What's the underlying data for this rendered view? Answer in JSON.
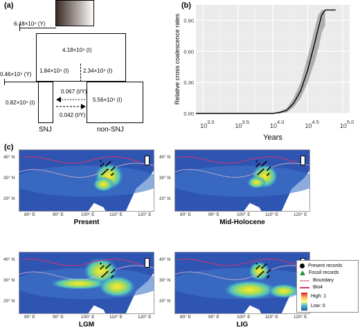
{
  "panels": {
    "a": "(a)",
    "b": "(b)",
    "c": "(c)"
  },
  "panel_a": {
    "ancestral_top": "6.48×10⁴ (Y)",
    "ancestral_box": "4.18×10⁴ (I)",
    "left_founder": "1.84×10⁴ (I)",
    "right_founder": "2.34×10⁴ (I)",
    "split_time": "0.46×10⁴ (Y)",
    "snj_size": "0.82×10⁴ (I)",
    "nonsnj_size": "5.56×10⁴ (I)",
    "migration_top": "0.067 (I/Y)",
    "migration_bottom": "0.042 (I/Y)",
    "snj_label": "SNJ",
    "nonsnj_label": "non-SNJ"
  },
  "chart_data": {
    "type": "line",
    "xlabel": "Years",
    "ylabel": "Relative cross coalescence rates",
    "x_scale": "log10",
    "x_tick_labels": [
      "10^3.0",
      "10^3.5",
      "10^4.0",
      "10^4.5",
      "10^5.0"
    ],
    "y_tick_labels": [
      "0.00",
      "0.30",
      "0.60",
      "0.90"
    ],
    "xlim": [
      2.9,
      5.1
    ],
    "ylim": [
      0,
      1.05
    ],
    "grid": true,
    "series": [
      {
        "values": [
          [
            2.9,
            0.0
          ],
          [
            3.2,
            0.0
          ],
          [
            3.5,
            0.0
          ],
          [
            3.8,
            0.0
          ],
          [
            4.0,
            0.0
          ],
          [
            4.1,
            0.01
          ],
          [
            4.2,
            0.03
          ],
          [
            4.3,
            0.1
          ],
          [
            4.4,
            0.22
          ],
          [
            4.5,
            0.42
          ],
          [
            4.55,
            0.55
          ],
          [
            4.6,
            0.68
          ],
          [
            4.65,
            0.82
          ],
          [
            4.7,
            0.95
          ],
          [
            4.75,
            1.0
          ],
          [
            4.9,
            1.0
          ]
        ]
      }
    ],
    "band": [
      [
        4.0,
        0.0,
        0.0
      ],
      [
        4.1,
        0.0,
        0.02
      ],
      [
        4.2,
        0.01,
        0.05
      ],
      [
        4.3,
        0.06,
        0.15
      ],
      [
        4.4,
        0.15,
        0.3
      ],
      [
        4.5,
        0.3,
        0.55
      ],
      [
        4.55,
        0.4,
        0.68
      ],
      [
        4.6,
        0.5,
        0.82
      ],
      [
        4.65,
        0.62,
        0.95
      ],
      [
        4.7,
        0.78,
        1.0
      ],
      [
        4.75,
        0.85,
        1.0
      ]
    ]
  },
  "maps": {
    "lat_labels": [
      "40° N",
      "30° N",
      "20° N"
    ],
    "lon_labels": [
      "80° E",
      "90° E",
      "100° E",
      "110° E",
      "120° E"
    ],
    "titles": [
      "Present",
      "Mid-Holocene",
      "LGM",
      "LIG"
    ]
  },
  "legend": {
    "present_records": "Present records",
    "fossil_records": "Fossil records",
    "boundary": "Boundary",
    "bio4": "Bio4",
    "high": "High: 1",
    "low": "Low:  0",
    "present_color": "#000000",
    "fossil_color": "#1a9641",
    "boundary_color": "#e0a0a0",
    "bio4_color": "#d6336c"
  }
}
